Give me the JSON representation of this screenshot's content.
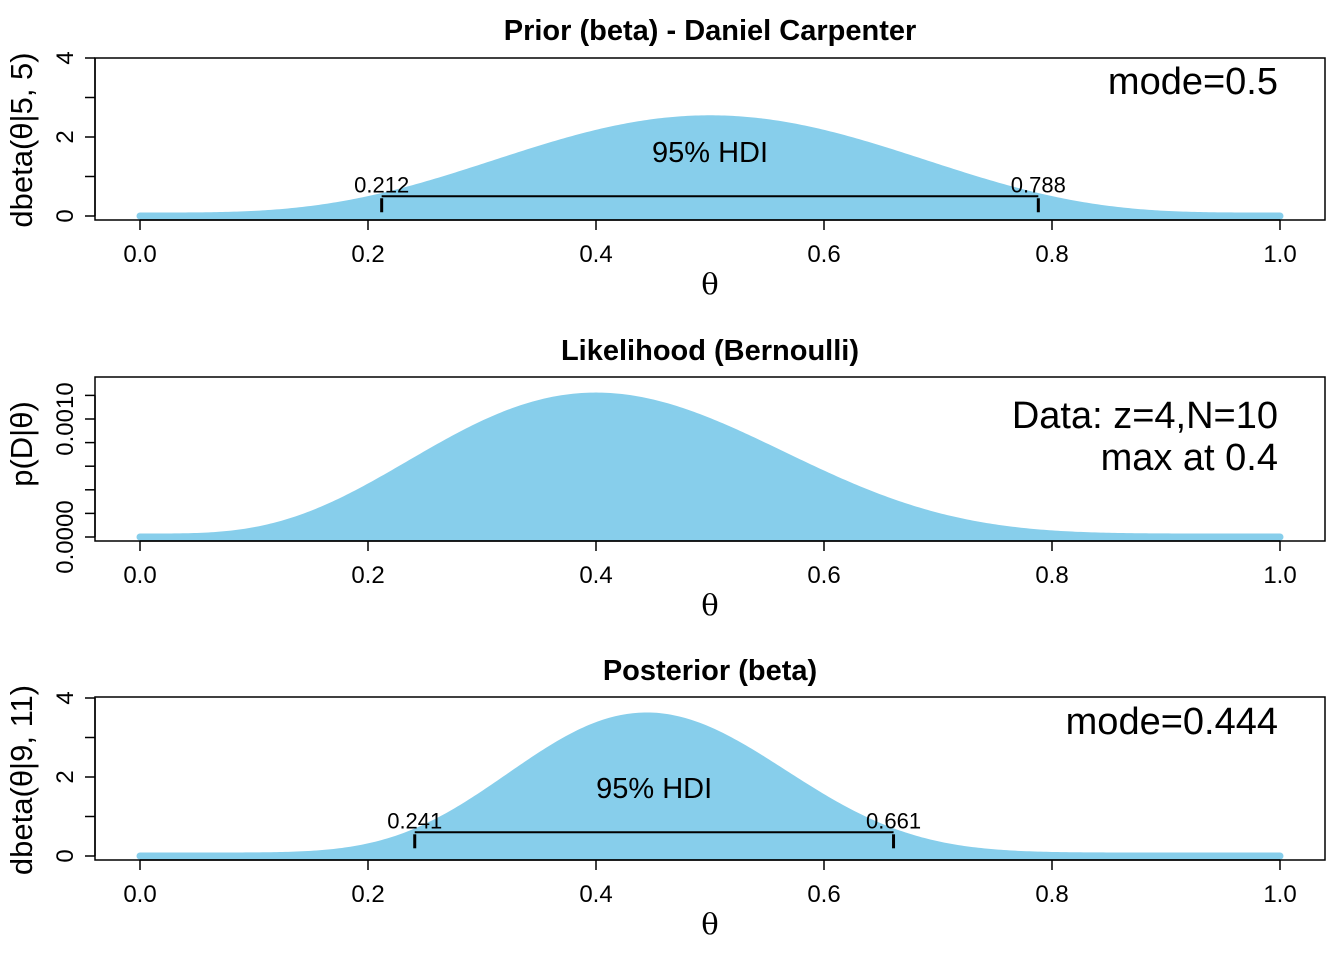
{
  "chart_data": [
    {
      "type": "area",
      "title": "Prior (beta) - Daniel Carpenter",
      "xlabel": "θ",
      "ylabel": "dbeta(θ|5, 5)",
      "xlim": [
        0,
        1
      ],
      "ylim": [
        0,
        4
      ],
      "x_ticks": [
        "0.0",
        "0.2",
        "0.4",
        "0.6",
        "0.8",
        "1.0"
      ],
      "y_ticks": [
        "0",
        "2",
        "4"
      ],
      "distribution": {
        "kind": "beta",
        "a": 5,
        "b": 5
      },
      "annotations": [
        "mode=0.5"
      ],
      "hdi": {
        "label": "95% HDI",
        "low": 0.212,
        "high": 0.788,
        "low_label": "0.212",
        "high_label": "0.788",
        "height": 0.5
      },
      "fill_color": "#87CEEB"
    },
    {
      "type": "area",
      "title": "Likelihood (Bernoulli)",
      "xlabel": "θ",
      "ylabel": "p(D|θ)",
      "xlim": [
        0,
        1
      ],
      "ylim": [
        0,
        0.00125
      ],
      "x_ticks": [
        "0.0",
        "0.2",
        "0.4",
        "0.6",
        "0.8",
        "1.0"
      ],
      "y_ticks": [
        "0.0000",
        "0.0010"
      ],
      "distribution": {
        "kind": "bernoulli",
        "z": 4,
        "N": 10
      },
      "annotations": [
        "Data: z=4,N=10",
        "max at 0.4"
      ],
      "fill_color": "#87CEEB"
    },
    {
      "type": "area",
      "title": "Posterior (beta)",
      "xlabel": "θ",
      "ylabel": "dbeta(θ|9, 11)",
      "xlim": [
        0,
        1
      ],
      "ylim": [
        0,
        4
      ],
      "x_ticks": [
        "0.0",
        "0.2",
        "0.4",
        "0.6",
        "0.8",
        "1.0"
      ],
      "y_ticks": [
        "0",
        "2",
        "4"
      ],
      "distribution": {
        "kind": "beta",
        "a": 9,
        "b": 11
      },
      "annotations": [
        "mode=0.444"
      ],
      "hdi": {
        "label": "95% HDI",
        "low": 0.241,
        "high": 0.661,
        "low_label": "0.241",
        "high_label": "0.661",
        "height": 0.6
      },
      "fill_color": "#87CEEB"
    }
  ]
}
